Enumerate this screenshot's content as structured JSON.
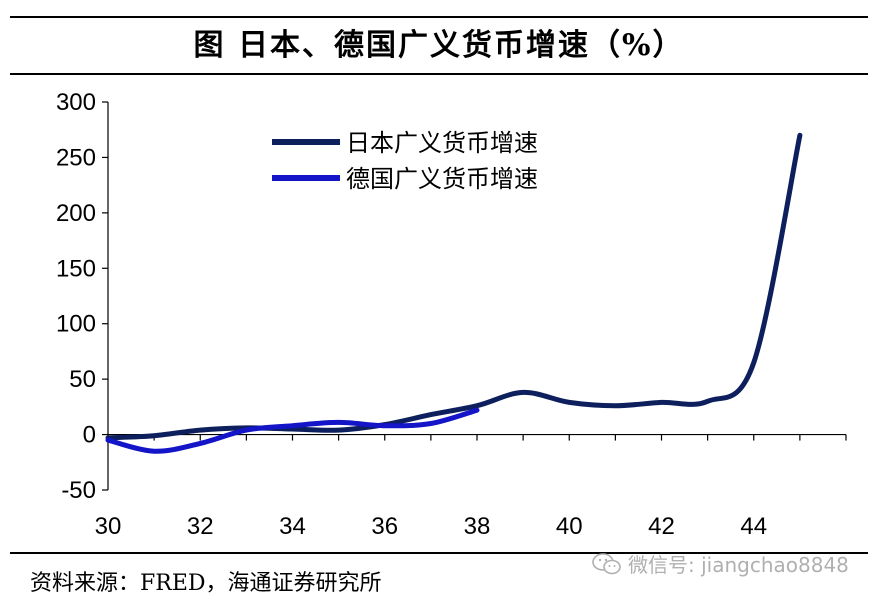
{
  "header": {
    "title": "图  日本、德国广义货币增速（%）"
  },
  "footer": {
    "source": "资料来源：FRED，海通证券研究所"
  },
  "watermark": {
    "text": "微信号: jiangchao8848",
    "icon": "wechat-icon"
  },
  "chart_data": {
    "type": "line",
    "title": "图  日本、德国广义货币增速（%）",
    "xlabel": "",
    "ylabel": "",
    "xlim": [
      30,
      46
    ],
    "ylim": [
      -50,
      300
    ],
    "x_ticks": [
      30,
      32,
      34,
      36,
      38,
      40,
      42,
      44
    ],
    "y_ticks": [
      -50,
      0,
      50,
      100,
      150,
      200,
      250,
      300
    ],
    "grid": false,
    "legend_position": "top-center",
    "series": [
      {
        "name": "日本广义货币增速",
        "color": "#0d1f5c",
        "x": [
          30,
          31,
          32,
          33,
          34,
          35,
          36,
          37,
          38,
          39,
          40,
          41,
          42,
          43,
          44,
          45
        ],
        "y": [
          -3,
          -1,
          4,
          6,
          5,
          4,
          9,
          18,
          26,
          38,
          29,
          26,
          29,
          30,
          65,
          270
        ]
      },
      {
        "name": "德国广义货币增速",
        "color": "#1414c8",
        "x": [
          30,
          31,
          32,
          33,
          34,
          35,
          36,
          37,
          38
        ],
        "y": [
          -5,
          -15,
          -8,
          4,
          8,
          11,
          8,
          10,
          22
        ]
      }
    ]
  }
}
